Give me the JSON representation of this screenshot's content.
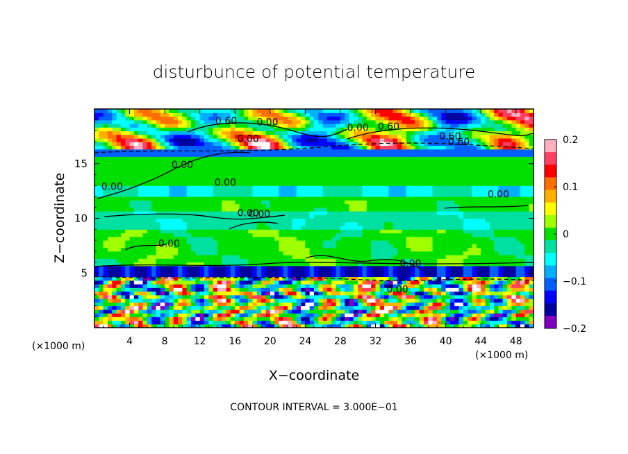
{
  "chart_data": {
    "type": "heatmap",
    "title": "disturbunce of potential temperature",
    "xlabel": "X−coordinate",
    "ylabel": "Z−coordinate",
    "x_unit_left": "(×1000 m)",
    "x_unit_right": "(×1000 m)",
    "footer": "CONTOUR INTERVAL = 3.000E−01",
    "xlim": [
      0,
      50
    ],
    "ylim": [
      0,
      20
    ],
    "x_ticks": [
      4,
      8,
      12,
      16,
      20,
      24,
      28,
      32,
      36,
      40,
      44,
      48
    ],
    "x_tick_labels": [
      "4",
      "8",
      "12",
      "16",
      "20",
      "24",
      "28",
      "32",
      "36",
      "40",
      "44",
      "48"
    ],
    "y_ticks": [
      5,
      10,
      15
    ],
    "y_tick_labels": [
      "5",
      "10",
      "15"
    ],
    "colorbar": {
      "min": -0.2,
      "max": 0.2,
      "tick_values": [
        0.2,
        0.1,
        0,
        -0.1,
        -0.2
      ],
      "tick_labels": [
        "0.2",
        "0.1",
        "0",
        "−0.1",
        "−0.2"
      ],
      "colors": [
        "#ffb0c0",
        "#ff4060",
        "#ff0000",
        "#ff7000",
        "#ffb000",
        "#ffff00",
        "#a0ff00",
        "#00e000",
        "#00e0a0",
        "#00ffff",
        "#00b0ff",
        "#0060ff",
        "#0000ff",
        "#0000a0",
        "#8000c0"
      ]
    },
    "contour_labels": [
      "0.60",
      "0.00",
      "0.00",
      "0.60",
      "0.60",
      "0.00",
      "0.60",
      "0.00",
      "0.00",
      "0.00",
      "0.00",
      "0.00",
      "0.00",
      "0.00",
      "0.00",
      "0.00"
    ]
  }
}
